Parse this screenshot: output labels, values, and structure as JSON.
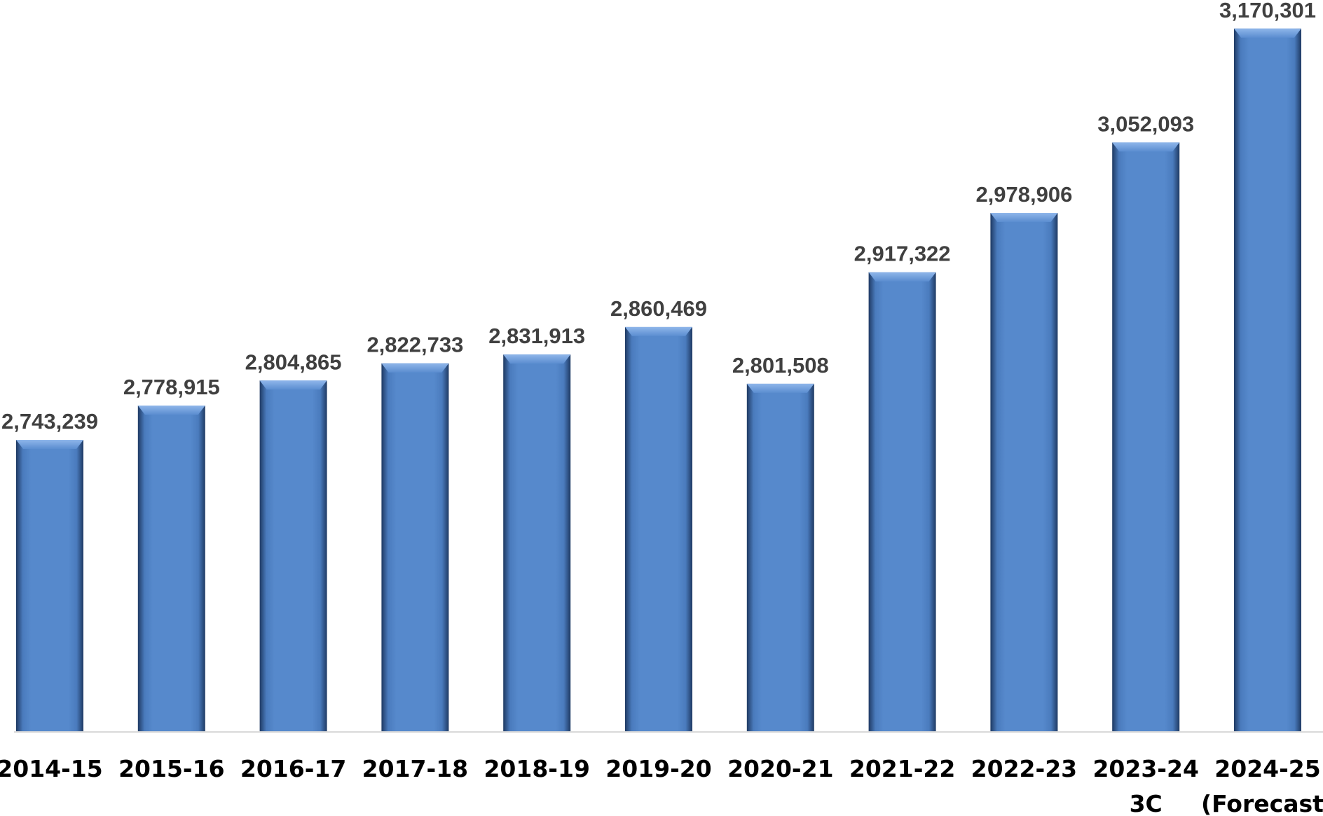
{
  "chart_data": {
    "type": "bar",
    "title": "",
    "xlabel": "",
    "ylabel": "",
    "categories": [
      [
        "2014-15"
      ],
      [
        "2015-16"
      ],
      [
        "2016-17"
      ],
      [
        "2017-18"
      ],
      [
        "2018-19"
      ],
      [
        "2019-20"
      ],
      [
        "2020-21"
      ],
      [
        "2021-22"
      ],
      [
        "2022-23"
      ],
      [
        "2023-24",
        "3C"
      ],
      [
        "2024-25",
        "(Forecast)"
      ]
    ],
    "values": [
      2743239,
      2778915,
      2804865,
      2822733,
      2831913,
      2860469,
      2801508,
      2917322,
      2978906,
      3052093,
      3170301
    ],
    "value_labels": [
      "2,743,239",
      "2,778,915",
      "2,804,865",
      "2,822,733",
      "2,831,913",
      "2,860,469",
      "2,801,508",
      "2,917,322",
      "2,978,906",
      "3,052,093",
      "3,170,301"
    ],
    "ylim": [
      2440000,
      3200000
    ],
    "grid": false,
    "legend": "none",
    "colors": {
      "bar": "#5588cc",
      "bar_highlight": "#6f9fe0",
      "bar_shadow": "#1f3a63",
      "axis": "#d9d9d9",
      "value_text": "#404040",
      "category_text": "#000000"
    }
  }
}
